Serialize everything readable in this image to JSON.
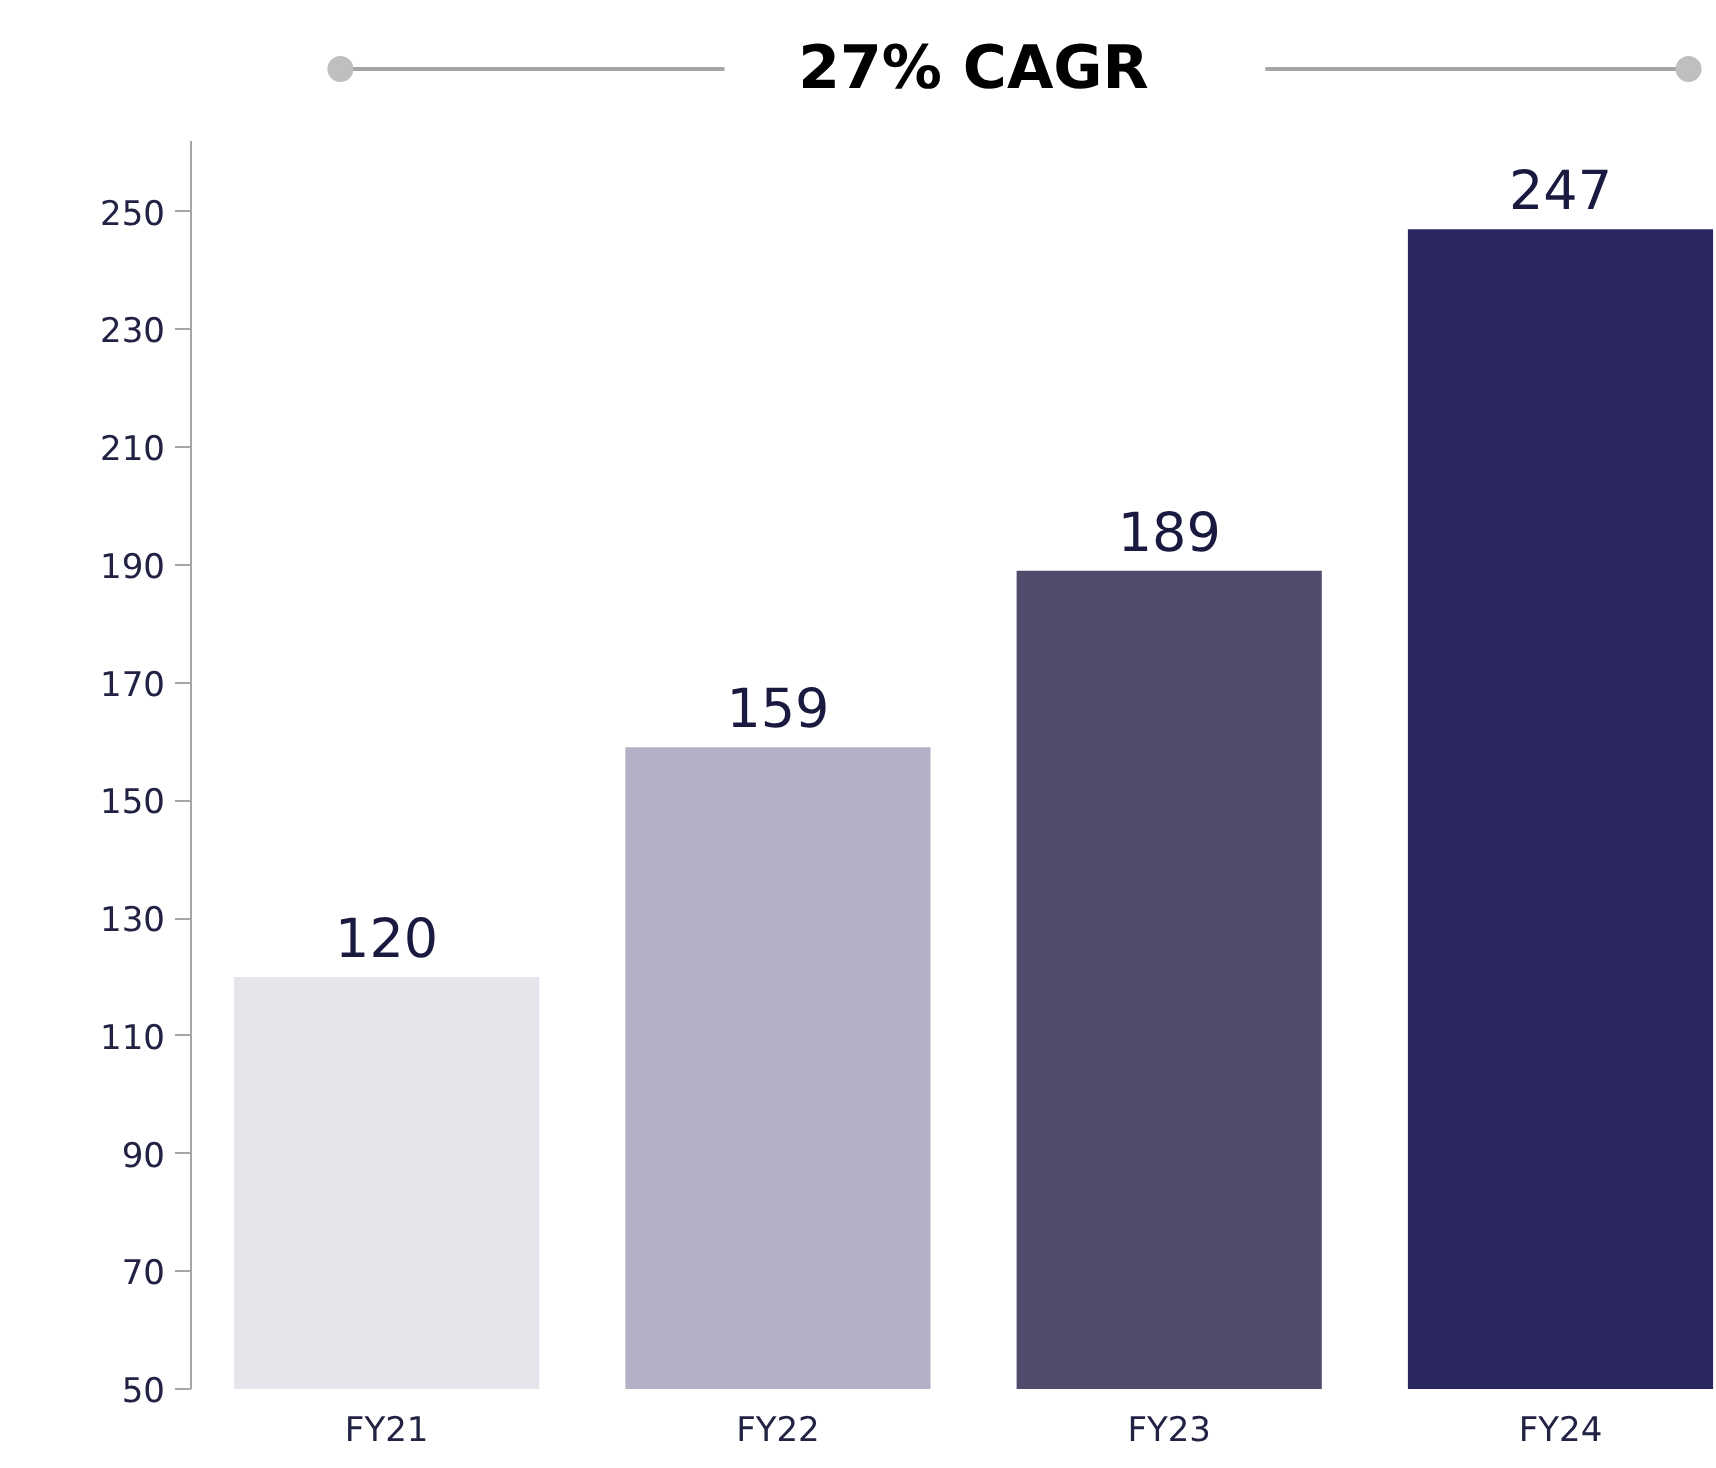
{
  "chart_data": {
    "type": "bar",
    "title": "27% CAGR",
    "categories": [
      "FY21",
      "FY22",
      "FY23",
      "FY24"
    ],
    "values": [
      120,
      159,
      189,
      247
    ],
    "colors": [
      "#e6e5ec",
      "#b3b1c5",
      "#4f4c6c",
      "#2a2660"
    ],
    "ylim": [
      50,
      262
    ],
    "yticks": [
      50,
      70,
      90,
      110,
      130,
      150,
      170,
      190,
      210,
      230,
      250
    ],
    "grid": false,
    "data_labels": true
  }
}
